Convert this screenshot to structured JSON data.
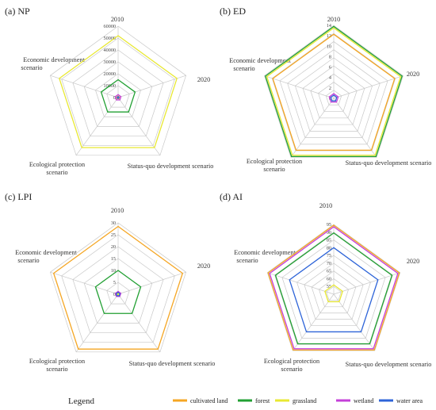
{
  "legend": {
    "title": "Legend",
    "items": [
      {
        "label": "cultivated land",
        "color": "#F5A623"
      },
      {
        "label": "forest",
        "color": "#22A033"
      },
      {
        "label": "grassland",
        "color": "#E8E832"
      },
      {
        "label": "wetland",
        "color": "#C43FD8"
      },
      {
        "label": "water area",
        "color": "#2E64D8"
      }
    ]
  },
  "chart_data": [
    {
      "id": "np",
      "type": "radar",
      "title": "(a) NP",
      "axes": [
        "2010",
        "2020",
        "Status-quo development scenario",
        "Ecological protection scenario",
        "Economic development scenario"
      ],
      "ticks": [
        "0",
        "10000",
        "20000",
        "30000",
        "40000",
        "50000",
        "60000"
      ],
      "range": [
        0,
        60000
      ],
      "grid": true,
      "series": [
        {
          "name": "cultivated land",
          "values": [
            1200,
            1200,
            1200,
            1200,
            1200
          ]
        },
        {
          "name": "forest",
          "values": [
            15000,
            15000,
            15000,
            15000,
            15000
          ]
        },
        {
          "name": "grassland",
          "values": [
            52000,
            52000,
            52000,
            52000,
            52000
          ]
        },
        {
          "name": "wetland",
          "values": [
            2500,
            2500,
            2500,
            2500,
            2500
          ]
        },
        {
          "name": "water area",
          "values": [
            800,
            800,
            800,
            800,
            800
          ]
        }
      ]
    },
    {
      "id": "ed",
      "type": "radar",
      "title": "(b) ED",
      "axes": [
        "2010",
        "2020",
        "Status-quo development scenario",
        "Ecological protection scenario",
        "Economic development scenario"
      ],
      "ticks": [
        "0",
        "2",
        "4",
        "6",
        "8",
        "10",
        "12",
        "14"
      ],
      "range": [
        0,
        14
      ],
      "grid": true,
      "series": [
        {
          "name": "cultivated land",
          "values": [
            12.3,
            12.3,
            12.3,
            12.3,
            12.3
          ]
        },
        {
          "name": "forest",
          "values": [
            13.8,
            13.8,
            13.8,
            13.8,
            13.8
          ]
        },
        {
          "name": "grassland",
          "values": [
            13.5,
            13.5,
            13.5,
            13.5,
            13.5
          ]
        },
        {
          "name": "wetland",
          "values": [
            0.9,
            0.9,
            0.9,
            0.9,
            0.9
          ]
        },
        {
          "name": "water area",
          "values": [
            0.6,
            0.6,
            0.6,
            0.6,
            0.6
          ]
        }
      ]
    },
    {
      "id": "lpi",
      "type": "radar",
      "title": "(c) LPI",
      "axes": [
        "2010",
        "2020",
        "Status-quo development scenario",
        "Ecological protection scenario",
        "Economic development scenario"
      ],
      "ticks": [
        "0",
        "5",
        "10",
        "15",
        "20",
        "25",
        "30"
      ],
      "range": [
        0,
        30
      ],
      "grid": true,
      "series": [
        {
          "name": "cultivated land",
          "values": [
            28.5,
            28.5,
            28.5,
            28.5,
            28.5
          ]
        },
        {
          "name": "forest",
          "values": [
            10,
            10,
            10,
            10,
            10
          ]
        },
        {
          "name": "grassland",
          "values": [
            0.3,
            0.3,
            0.3,
            0.3,
            0.3
          ]
        },
        {
          "name": "wetland",
          "values": [
            1.2,
            1.2,
            1.2,
            1.2,
            1.2
          ]
        },
        {
          "name": "water area",
          "values": [
            0.8,
            0.8,
            0.8,
            0.8,
            0.8
          ]
        }
      ]
    },
    {
      "id": "ai",
      "type": "radar",
      "title": "(d) AI",
      "axes": [
        "2010",
        "2020",
        "Status-quo development scenario",
        "Ecological protection scenario",
        "Economic development scenario"
      ],
      "ticks": [
        "55",
        "60",
        "65",
        "70",
        "75",
        "80",
        "85",
        "90",
        "95"
      ],
      "range": [
        50,
        95
      ],
      "grid": true,
      "series": [
        {
          "name": "cultivated land",
          "values": [
            94.5,
            94.5,
            94.5,
            94.5,
            94.5
          ]
        },
        {
          "name": "forest",
          "values": [
            89.5,
            89.5,
            89.5,
            89.5,
            89.5
          ]
        },
        {
          "name": "grassland",
          "values": [
            56,
            56,
            56,
            56,
            56
          ]
        },
        {
          "name": "wetland",
          "values": [
            93.5,
            93.5,
            93.5,
            93.5,
            93.5
          ]
        },
        {
          "name": "water area",
          "values": [
            80,
            80,
            80,
            80,
            80
          ]
        }
      ]
    }
  ]
}
